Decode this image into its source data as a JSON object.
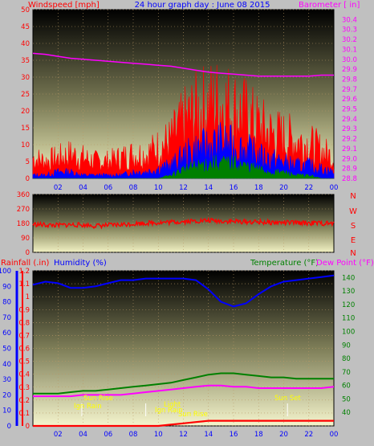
{
  "header": {
    "left_label": "Windspeed [mph]",
    "center_label": "24 hour graph day : June 08 2015",
    "right_label": "Barometer [ in]"
  },
  "direction_labels": [
    "N",
    "W",
    "S",
    "E",
    "N"
  ],
  "bottom_header": {
    "rain_label": "Rainfall (.in)",
    "humidity_label": "Humidity (%)",
    "temp_label": "Temperature (°F)",
    "dew_label": "Dew Point (°F)"
  },
  "annotations": {
    "sunrise": "Sun Rise",
    "sunset": "Sun Set",
    "small_labels": [
      "Ign Rain",
      "Sun Rise",
      "Ign Rain",
      "Light",
      "Sun Rise"
    ]
  },
  "colors": {
    "wind": "#ff0000",
    "gust": "#0000ff",
    "avg": "#008000",
    "barometer": "#ff00ff",
    "direction": "#ff0000",
    "rain": "#ff0000",
    "humidity": "#0000ff",
    "temperature": "#008000",
    "dewpoint": "#ff00ff"
  },
  "chart_data": [
    {
      "type": "area",
      "title": "24 hour graph day : June 08 2015",
      "ylabel": "Windspeed [mph]",
      "ylabel_right": "Barometer [ in]",
      "x_ticks": [
        "02",
        "04",
        "06",
        "08",
        "10",
        "12",
        "14",
        "16",
        "18",
        "20",
        "22",
        "00"
      ],
      "x_hours": [
        0,
        1,
        2,
        3,
        4,
        5,
        6,
        7,
        8,
        9,
        10,
        11,
        12,
        13,
        14,
        15,
        16,
        17,
        18,
        19,
        20,
        21,
        22,
        23,
        24
      ],
      "ylim": [
        0,
        50
      ],
      "y_ticks": [
        0,
        5,
        10,
        15,
        20,
        25,
        30,
        35,
        40,
        45,
        50
      ],
      "ylim_right": [
        28.8,
        30.5
      ],
      "y_ticks_right": [
        28.8,
        28.9,
        29.0,
        29.1,
        29.2,
        29.3,
        29.4,
        29.5,
        29.6,
        29.7,
        29.8,
        29.9,
        30.0,
        30.1,
        30.2,
        30.3,
        30.4
      ],
      "series": [
        {
          "name": "Windspeed",
          "axis": "left",
          "values": [
            6,
            5,
            6,
            7,
            6,
            5,
            5,
            6,
            7,
            7,
            9,
            11,
            16,
            19,
            21,
            22,
            20,
            18,
            15,
            13,
            12,
            11,
            10,
            8,
            6
          ]
        },
        {
          "name": "Windspeed avg",
          "axis": "left",
          "values": [
            1,
            1,
            2,
            2,
            1,
            1,
            1,
            1,
            2,
            2,
            3,
            4,
            7,
            9,
            10,
            11,
            10,
            9,
            7,
            6,
            5,
            4,
            4,
            3,
            2
          ]
        },
        {
          "name": "Windspeed low",
          "axis": "left",
          "values": [
            0,
            0,
            0,
            0,
            0,
            0,
            0,
            0,
            0,
            0,
            0,
            1,
            3,
            4,
            5,
            5,
            5,
            4,
            3,
            2,
            2,
            1,
            1,
            0,
            0
          ]
        },
        {
          "name": "Barometer",
          "axis": "right",
          "values": [
            30.06,
            30.05,
            30.03,
            30.01,
            30.0,
            29.99,
            29.98,
            29.97,
            29.96,
            29.95,
            29.94,
            29.93,
            29.91,
            29.89,
            29.87,
            29.86,
            29.85,
            29.84,
            29.83,
            29.83,
            29.83,
            29.83,
            29.83,
            29.84,
            29.84
          ]
        }
      ]
    },
    {
      "type": "line",
      "ylabel": "Wind direction",
      "x_ticks": [
        "02",
        "04",
        "06",
        "08",
        "10",
        "12",
        "14",
        "16",
        "18",
        "20",
        "22",
        "00"
      ],
      "ylim": [
        0,
        360
      ],
      "y_ticks": [
        0,
        90,
        180,
        270,
        360
      ],
      "x_hours": [
        0,
        1,
        2,
        3,
        4,
        5,
        6,
        7,
        8,
        9,
        10,
        11,
        12,
        13,
        14,
        15,
        16,
        17,
        18,
        19,
        20,
        21,
        22,
        23,
        24
      ],
      "series": [
        {
          "name": "Wind direction",
          "values": [
            175,
            170,
            168,
            172,
            170,
            165,
            168,
            172,
            178,
            182,
            185,
            188,
            192,
            195,
            198,
            195,
            192,
            190,
            188,
            186,
            185,
            184,
            182,
            180,
            178
          ]
        }
      ]
    },
    {
      "type": "line",
      "x_ticks": [
        "02",
        "04",
        "06",
        "08",
        "10",
        "12",
        "14",
        "16",
        "18",
        "20",
        "22",
        "00"
      ],
      "x_hours": [
        0,
        1,
        2,
        3,
        4,
        5,
        6,
        7,
        8,
        9,
        10,
        11,
        12,
        13,
        14,
        15,
        16,
        17,
        18,
        19,
        20,
        21,
        22,
        23,
        24
      ],
      "rain_ylim": [
        0,
        1.2
      ],
      "rain_ticks": [
        0,
        0.1,
        0.2,
        0.3,
        0.4,
        0.5,
        0.6,
        0.7,
        0.8,
        0.9,
        1,
        1.1,
        1.2
      ],
      "humidity_ylim": [
        0,
        100
      ],
      "humidity_ticks": [
        0,
        10,
        20,
        30,
        40,
        50,
        60,
        70,
        80,
        90,
        100
      ],
      "temp_ylim": [
        30,
        145
      ],
      "temp_ticks": [
        40,
        50,
        60,
        70,
        80,
        90,
        100,
        110,
        120,
        130,
        140
      ],
      "series": [
        {
          "name": "Rainfall",
          "axis": "rain",
          "values": [
            0,
            0,
            0,
            0,
            0,
            0,
            0,
            0,
            0,
            0,
            0,
            0.01,
            0.02,
            0.03,
            0.04,
            0.04,
            0.04,
            0.04,
            0.04,
            0.04,
            0.04,
            0.04,
            0.04,
            0.04,
            0.04
          ]
        },
        {
          "name": "Humidity",
          "axis": "humidity",
          "values": [
            91,
            93,
            92,
            89,
            89,
            90,
            92,
            94,
            94,
            95,
            95,
            95,
            95,
            94,
            88,
            80,
            77,
            79,
            85,
            90,
            93,
            94,
            95,
            96,
            97
          ]
        },
        {
          "name": "Temperature",
          "axis": "temp",
          "values": [
            54,
            54,
            54,
            55,
            56,
            56,
            57,
            58,
            59,
            60,
            61,
            62,
            64,
            66,
            68,
            69,
            69,
            68,
            67,
            66,
            66,
            65,
            65,
            65,
            65
          ]
        },
        {
          "name": "Dew Point",
          "axis": "temp",
          "values": [
            52,
            52,
            52,
            52,
            53,
            53,
            53,
            53,
            54,
            55,
            56,
            57,
            58,
            59,
            60,
            60,
            59,
            59,
            58,
            58,
            58,
            58,
            58,
            58,
            59
          ]
        }
      ]
    }
  ]
}
